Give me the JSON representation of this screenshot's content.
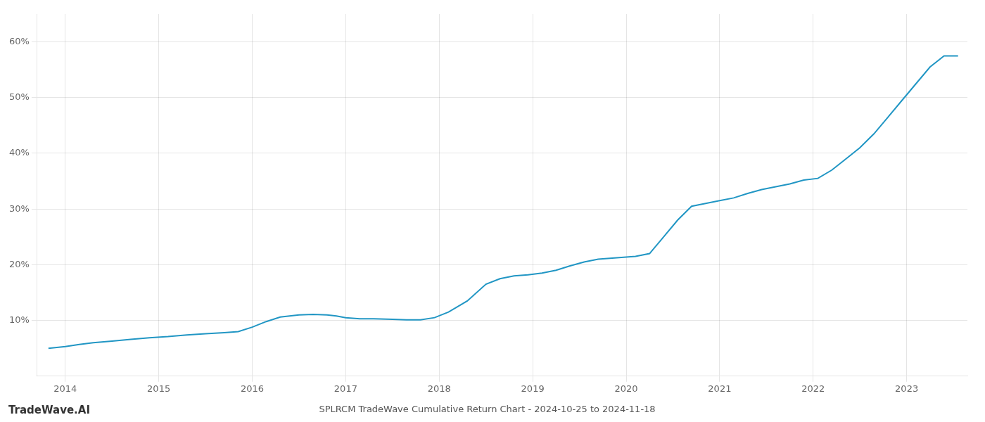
{
  "chart_data": {
    "type": "line",
    "title": "SPLRCM TradeWave Cumulative Return Chart - 2024-10-25 to 2024-11-18",
    "annotations": [
      "TradeWave.AI"
    ],
    "x": [
      2013.82,
      2014.0,
      2014.15,
      2014.3,
      2014.5,
      2014.7,
      2014.9,
      2015.1,
      2015.3,
      2015.5,
      2015.7,
      2015.85,
      2016.0,
      2016.15,
      2016.3,
      2016.5,
      2016.65,
      2016.8,
      2016.9,
      2017.0,
      2017.15,
      2017.3,
      2017.5,
      2017.65,
      2017.8,
      2017.95,
      2018.1,
      2018.3,
      2018.5,
      2018.65,
      2018.8,
      2018.95,
      2019.1,
      2019.25,
      2019.4,
      2019.55,
      2019.7,
      2019.85,
      2019.95,
      2020.1,
      2020.25,
      2020.4,
      2020.55,
      2020.7,
      2020.85,
      2021.0,
      2021.15,
      2021.3,
      2021.45,
      2021.6,
      2021.75,
      2021.9,
      2022.05,
      2022.2,
      2022.35,
      2022.5,
      2022.65,
      2022.8,
      2022.95,
      2023.1,
      2023.25,
      2023.4,
      2023.55
    ],
    "values": [
      5.0,
      5.3,
      5.7,
      6.0,
      6.3,
      6.6,
      6.9,
      7.1,
      7.4,
      7.6,
      7.8,
      8.0,
      8.8,
      9.8,
      10.6,
      11.0,
      11.1,
      11.0,
      10.8,
      10.5,
      10.3,
      10.3,
      10.2,
      10.1,
      10.1,
      10.5,
      11.5,
      13.5,
      16.5,
      17.5,
      18.0,
      18.2,
      18.5,
      19.0,
      19.8,
      20.5,
      21.0,
      21.2,
      21.3,
      21.5,
      22.0,
      25.0,
      28.0,
      30.5,
      31.0,
      31.5,
      32.0,
      32.8,
      33.5,
      34.0,
      34.5,
      35.2,
      35.5,
      37.0,
      39.0,
      41.0,
      43.5,
      46.5,
      49.5,
      52.5,
      55.5,
      57.5,
      57.5
    ],
    "color": "#2196c4",
    "xlim": [
      2013.7,
      2023.65
    ],
    "ylim": [
      0,
      65
    ],
    "xticks": [
      2014,
      2015,
      2016,
      2017,
      2018,
      2019,
      2020,
      2021,
      2022,
      2023
    ],
    "yticks": [
      {
        "value": 10,
        "label": "10%"
      },
      {
        "value": 20,
        "label": "20%"
      },
      {
        "value": 30,
        "label": "30%"
      },
      {
        "value": 40,
        "label": "40%"
      },
      {
        "value": 50,
        "label": "50%"
      },
      {
        "value": 60,
        "label": "60%"
      }
    ],
    "grid": true
  }
}
